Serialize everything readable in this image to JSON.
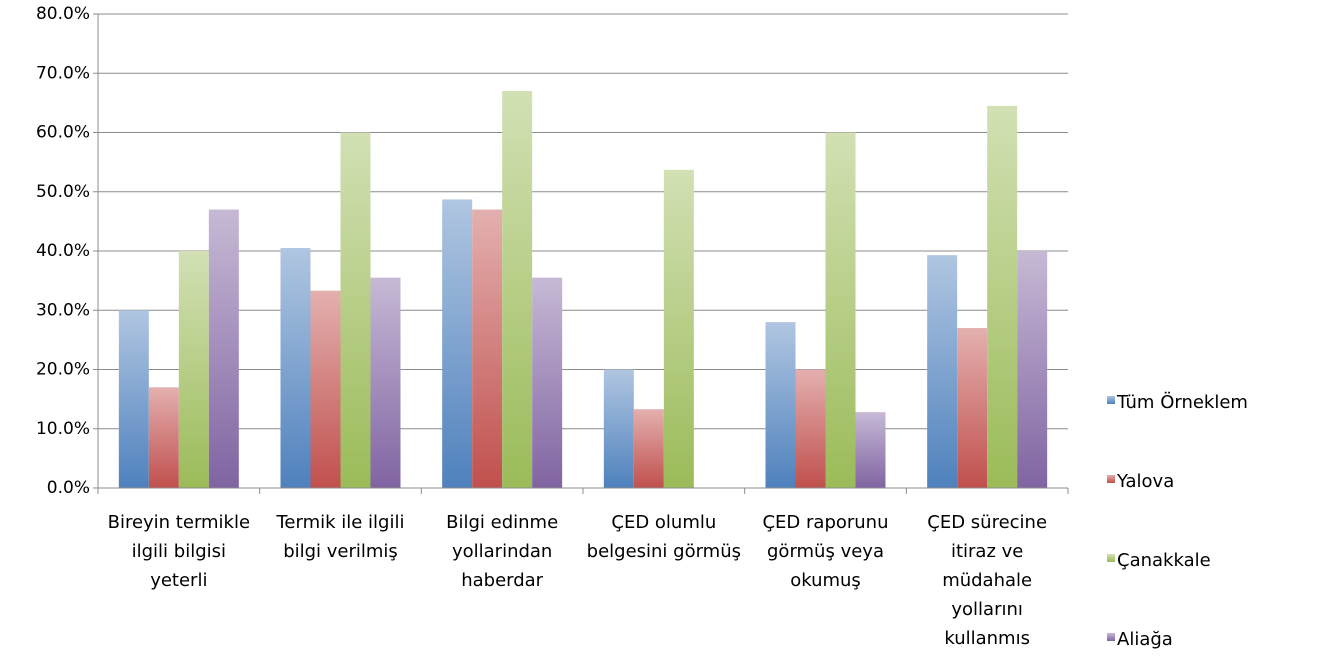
{
  "chart_data": {
    "type": "bar",
    "categories": [
      "Bireyin termikle ilgili bilgisi yeterli",
      "Termik ile ilgili bilgi verilmiş",
      "Bilgi edinme yollarindan haberdar",
      "ÇED olumlu belgesini görmüş",
      "ÇED raporunu görmüş veya okumuş",
      "ÇED sürecine itiraz ve müdahale yollarını kullanmıs"
    ],
    "series": [
      {
        "name": "Tüm Örneklem",
        "color": "#4f81bd",
        "values": [
          30,
          40.5,
          48.7,
          20,
          28,
          39.3
        ]
      },
      {
        "name": "Yalova",
        "color": "#c0504d",
        "values": [
          17,
          33.3,
          47,
          13.3,
          20,
          27
        ]
      },
      {
        "name": "Çanakkale",
        "color": "#9bbb59",
        "values": [
          40,
          60,
          67,
          53.7,
          60,
          64.5
        ]
      },
      {
        "name": "Aliağa",
        "color": "#8064a2",
        "values": [
          47,
          35.5,
          35.5,
          null,
          12.8,
          40
        ]
      }
    ],
    "ylim": [
      0,
      80
    ],
    "yticks": [
      {
        "value": 0,
        "label": "0.0%"
      },
      {
        "value": 10,
        "label": "10.0%"
      },
      {
        "value": 20,
        "label": "20.0%"
      },
      {
        "value": 30,
        "label": "30.0%"
      },
      {
        "value": 40,
        "label": "40.0%"
      },
      {
        "value": 50,
        "label": "50.0%"
      },
      {
        "value": 60,
        "label": "60.0%"
      },
      {
        "value": 70,
        "label": "70.0%"
      },
      {
        "value": 80,
        "label": "80.0%"
      }
    ],
    "grid": true,
    "legend": "right"
  }
}
